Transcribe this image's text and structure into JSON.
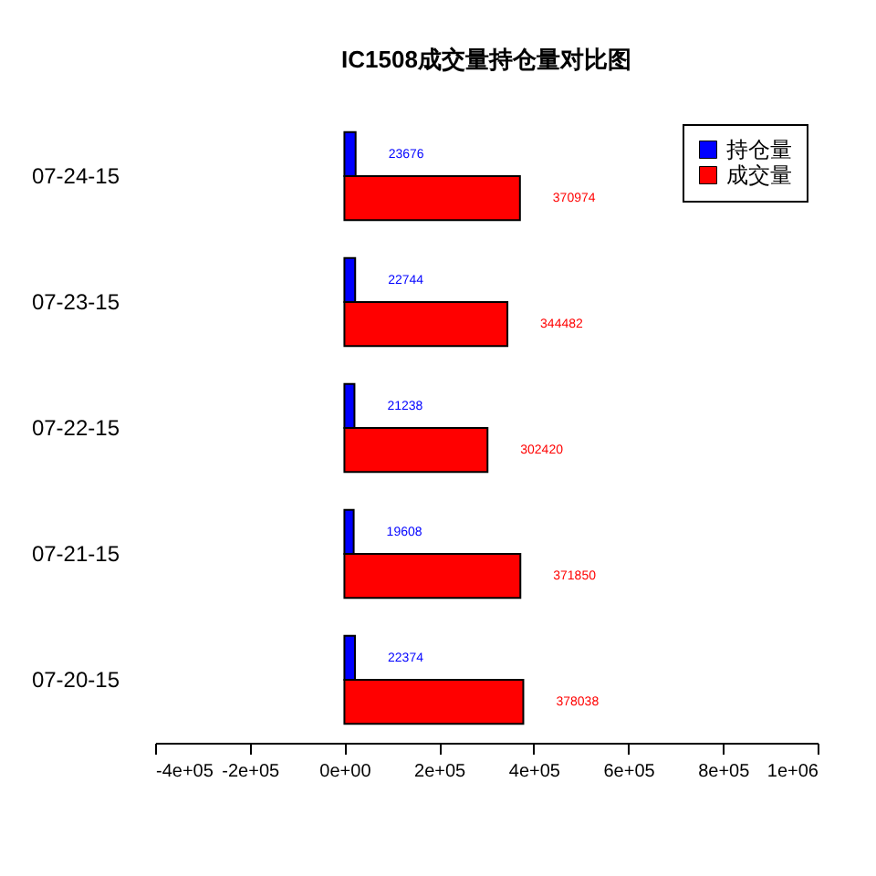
{
  "chart_data": {
    "type": "bar",
    "orientation": "horizontal",
    "title": "IC1508成交量持仓量对比图",
    "categories": [
      "07-24-15",
      "07-23-15",
      "07-22-15",
      "07-21-15",
      "07-20-15"
    ],
    "series": [
      {
        "name": "持仓量",
        "color": "#0000ff",
        "values": [
          23676,
          22744,
          21238,
          19608,
          22374
        ]
      },
      {
        "name": "成交量",
        "color": "#ff0000",
        "values": [
          370974,
          344482,
          302420,
          371850,
          378038
        ]
      }
    ],
    "xlim": [
      -400000,
      1000000
    ],
    "xticks": [
      {
        "value": -400000,
        "label": "-4e+05"
      },
      {
        "value": -200000,
        "label": "-2e+05"
      },
      {
        "value": 0,
        "label": "0e+00"
      },
      {
        "value": 200000,
        "label": "2e+05"
      },
      {
        "value": 400000,
        "label": "4e+05"
      },
      {
        "value": 600000,
        "label": "6e+05"
      },
      {
        "value": 800000,
        "label": "8e+05"
      },
      {
        "value": 1000000,
        "label": "1e+06"
      }
    ],
    "data_labels": true,
    "grid": false,
    "legend": "top right"
  }
}
